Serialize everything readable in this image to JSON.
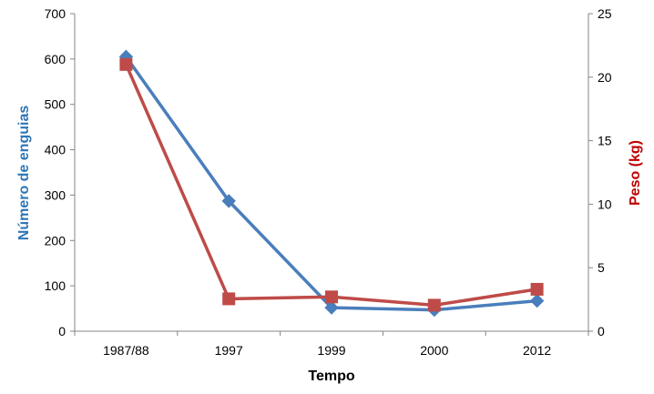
{
  "chart_data": {
    "type": "line",
    "categories": [
      "1987/88",
      "1997",
      "1999",
      "2000",
      "2012"
    ],
    "xlabel": "Tempo",
    "y_left": {
      "label": "Número de enguias",
      "ylim": [
        0,
        700
      ],
      "ticks": [
        0,
        100,
        200,
        300,
        400,
        500,
        600,
        700
      ],
      "color": "#2E75B6"
    },
    "y_right": {
      "label": "Peso (kg)",
      "ylim": [
        0,
        25
      ],
      "ticks": [
        0,
        5,
        10,
        15,
        20,
        25
      ],
      "color": "#C00000"
    },
    "series": [
      {
        "axis": "left",
        "color": "#4A7EBB",
        "marker": "diamond",
        "values": [
          605,
          287,
          52,
          47,
          67
        ]
      },
      {
        "axis": "right",
        "color": "#BE4B48",
        "marker": "square",
        "values": [
          21.0,
          2.55,
          2.7,
          2.05,
          3.3
        ]
      }
    ],
    "grid": false,
    "legend": "none"
  }
}
